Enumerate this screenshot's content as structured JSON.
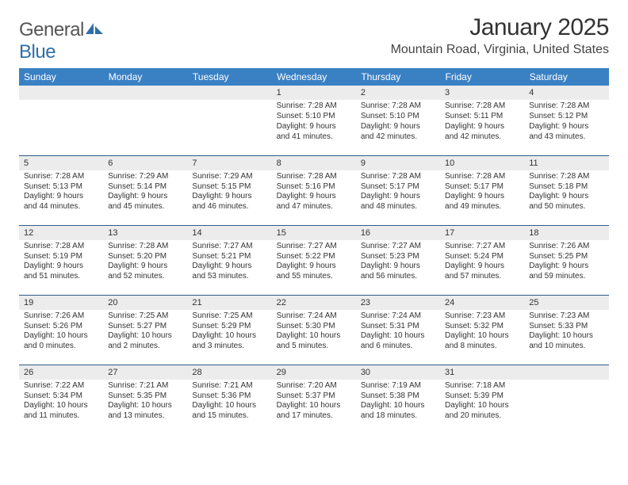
{
  "brand": {
    "text1": "General",
    "text2": "Blue"
  },
  "title": "January 2025",
  "location": "Mountain Road, Virginia, United States",
  "colors": {
    "header_bg": "#3a81c4",
    "header_text": "#ffffff",
    "daynum_bg": "#ececec",
    "row_border": "#2f5b88",
    "brand_blue": "#2f6fa7",
    "text": "#333333"
  },
  "weekdays": [
    "Sunday",
    "Monday",
    "Tuesday",
    "Wednesday",
    "Thursday",
    "Friday",
    "Saturday"
  ],
  "weeks": [
    [
      null,
      null,
      null,
      {
        "n": "1",
        "sr": "7:28 AM",
        "ss": "5:10 PM",
        "dl": "9 hours and 41 minutes."
      },
      {
        "n": "2",
        "sr": "7:28 AM",
        "ss": "5:10 PM",
        "dl": "9 hours and 42 minutes."
      },
      {
        "n": "3",
        "sr": "7:28 AM",
        "ss": "5:11 PM",
        "dl": "9 hours and 42 minutes."
      },
      {
        "n": "4",
        "sr": "7:28 AM",
        "ss": "5:12 PM",
        "dl": "9 hours and 43 minutes."
      }
    ],
    [
      {
        "n": "5",
        "sr": "7:28 AM",
        "ss": "5:13 PM",
        "dl": "9 hours and 44 minutes."
      },
      {
        "n": "6",
        "sr": "7:29 AM",
        "ss": "5:14 PM",
        "dl": "9 hours and 45 minutes."
      },
      {
        "n": "7",
        "sr": "7:29 AM",
        "ss": "5:15 PM",
        "dl": "9 hours and 46 minutes."
      },
      {
        "n": "8",
        "sr": "7:28 AM",
        "ss": "5:16 PM",
        "dl": "9 hours and 47 minutes."
      },
      {
        "n": "9",
        "sr": "7:28 AM",
        "ss": "5:17 PM",
        "dl": "9 hours and 48 minutes."
      },
      {
        "n": "10",
        "sr": "7:28 AM",
        "ss": "5:17 PM",
        "dl": "9 hours and 49 minutes."
      },
      {
        "n": "11",
        "sr": "7:28 AM",
        "ss": "5:18 PM",
        "dl": "9 hours and 50 minutes."
      }
    ],
    [
      {
        "n": "12",
        "sr": "7:28 AM",
        "ss": "5:19 PM",
        "dl": "9 hours and 51 minutes."
      },
      {
        "n": "13",
        "sr": "7:28 AM",
        "ss": "5:20 PM",
        "dl": "9 hours and 52 minutes."
      },
      {
        "n": "14",
        "sr": "7:27 AM",
        "ss": "5:21 PM",
        "dl": "9 hours and 53 minutes."
      },
      {
        "n": "15",
        "sr": "7:27 AM",
        "ss": "5:22 PM",
        "dl": "9 hours and 55 minutes."
      },
      {
        "n": "16",
        "sr": "7:27 AM",
        "ss": "5:23 PM",
        "dl": "9 hours and 56 minutes."
      },
      {
        "n": "17",
        "sr": "7:27 AM",
        "ss": "5:24 PM",
        "dl": "9 hours and 57 minutes."
      },
      {
        "n": "18",
        "sr": "7:26 AM",
        "ss": "5:25 PM",
        "dl": "9 hours and 59 minutes."
      }
    ],
    [
      {
        "n": "19",
        "sr": "7:26 AM",
        "ss": "5:26 PM",
        "dl": "10 hours and 0 minutes."
      },
      {
        "n": "20",
        "sr": "7:25 AM",
        "ss": "5:27 PM",
        "dl": "10 hours and 2 minutes."
      },
      {
        "n": "21",
        "sr": "7:25 AM",
        "ss": "5:29 PM",
        "dl": "10 hours and 3 minutes."
      },
      {
        "n": "22",
        "sr": "7:24 AM",
        "ss": "5:30 PM",
        "dl": "10 hours and 5 minutes."
      },
      {
        "n": "23",
        "sr": "7:24 AM",
        "ss": "5:31 PM",
        "dl": "10 hours and 6 minutes."
      },
      {
        "n": "24",
        "sr": "7:23 AM",
        "ss": "5:32 PM",
        "dl": "10 hours and 8 minutes."
      },
      {
        "n": "25",
        "sr": "7:23 AM",
        "ss": "5:33 PM",
        "dl": "10 hours and 10 minutes."
      }
    ],
    [
      {
        "n": "26",
        "sr": "7:22 AM",
        "ss": "5:34 PM",
        "dl": "10 hours and 11 minutes."
      },
      {
        "n": "27",
        "sr": "7:21 AM",
        "ss": "5:35 PM",
        "dl": "10 hours and 13 minutes."
      },
      {
        "n": "28",
        "sr": "7:21 AM",
        "ss": "5:36 PM",
        "dl": "10 hours and 15 minutes."
      },
      {
        "n": "29",
        "sr": "7:20 AM",
        "ss": "5:37 PM",
        "dl": "10 hours and 17 minutes."
      },
      {
        "n": "30",
        "sr": "7:19 AM",
        "ss": "5:38 PM",
        "dl": "10 hours and 18 minutes."
      },
      {
        "n": "31",
        "sr": "7:18 AM",
        "ss": "5:39 PM",
        "dl": "10 hours and 20 minutes."
      },
      null
    ]
  ],
  "labels": {
    "sunrise": "Sunrise:",
    "sunset": "Sunset:",
    "daylight": "Daylight:"
  }
}
